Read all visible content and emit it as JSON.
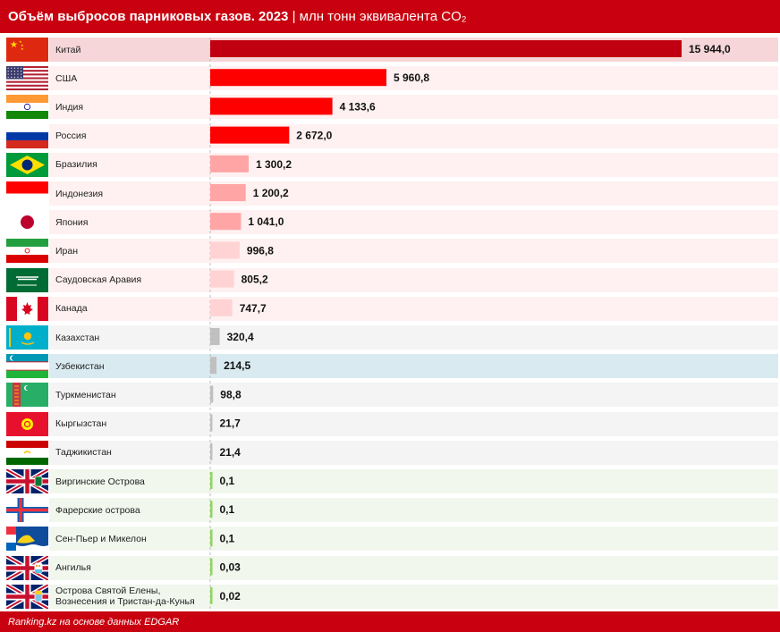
{
  "header": {
    "title_bold": "Объём выбросов парниковых газов. 2023",
    "separator": " | ",
    "title_unit": "млн тонн эквивалента CO₂"
  },
  "footer": {
    "source": "Ranking.kz на основе данных EDGAR"
  },
  "chart_data": {
    "type": "bar",
    "orientation": "horizontal",
    "title": "Объём выбросов парниковых газов. 2023",
    "unit": "млн тонн эквивалента CO₂",
    "categories": [
      "Китай",
      "США",
      "Индия",
      "Россия",
      "Бразилия",
      "Индонезия",
      "Япония",
      "Иран",
      "Саудовская Аравия",
      "Канада",
      "Казахстан",
      "Узбекистан",
      "Туркменистан",
      "Кыргызстан",
      "Таджикистан",
      "Виргинские Острова",
      "Фарерские острова",
      "Сен-Пьер и Микелон",
      "Ангилья",
      "Острова Святой Елены, Вознесения и Тристан-да-Кунья"
    ],
    "values": [
      15944.0,
      5960.8,
      4133.6,
      2672.0,
      1300.2,
      1200.2,
      1041.0,
      996.8,
      805.2,
      747.7,
      320.4,
      214.5,
      98.8,
      21.7,
      21.4,
      0.1,
      0.1,
      0.1,
      0.03,
      0.02
    ],
    "value_labels": [
      "15 944,0",
      "5 960,8",
      "4 133,6",
      "2 672,0",
      "1 300,2",
      "1 200,2",
      "1 041,0",
      "996,8",
      "805,2",
      "747,7",
      "320,4",
      "214,5",
      "98,8",
      "21,7",
      "21,4",
      "0,1",
      "0,1",
      "0,1",
      "0,03",
      "0,02"
    ],
    "bar_colors": [
      "#c00010",
      "#ff0000",
      "#ff0000",
      "#ff0000",
      "#ffa5a5",
      "#ffa5a5",
      "#ffa5a5",
      "#ffd3d3",
      "#ffd3d3",
      "#ffd3d3",
      "#c0c0c0",
      "#c0c0c0",
      "#c0c0c0",
      "#c0c0c0",
      "#c0c0c0",
      "#8fd460",
      "#8fd460",
      "#8fd460",
      "#8fd460",
      "#8fd460"
    ],
    "row_colors": [
      "#f6d6d8",
      "#fff1f1",
      "#fff1f1",
      "#fff1f1",
      "#fff1f1",
      "#fff1f1",
      "#fff1f1",
      "#fff1f1",
      "#fff1f1",
      "#fff1f1",
      "#f4f4f4",
      "#d9ebf1",
      "#f4f4f4",
      "#f4f4f4",
      "#f4f4f4",
      "#f1f7ed",
      "#f1f7ed",
      "#f1f7ed",
      "#f1f7ed",
      "#f1f7ed"
    ],
    "flags": [
      "china-flag",
      "usa-flag",
      "india-flag",
      "russia-flag",
      "brazil-flag",
      "indonesia-flag",
      "japan-flag",
      "iran-flag",
      "saudi-arabia-flag",
      "canada-flag",
      "kazakhstan-flag",
      "uzbekistan-flag",
      "turkmenistan-flag",
      "kyrgyzstan-flag",
      "tajikistan-flag",
      "british-virgin-islands-flag",
      "faroe-islands-flag",
      "saint-pierre-and-miquelon-flag",
      "anguilla-flag",
      "saint-helena-flag"
    ]
  }
}
